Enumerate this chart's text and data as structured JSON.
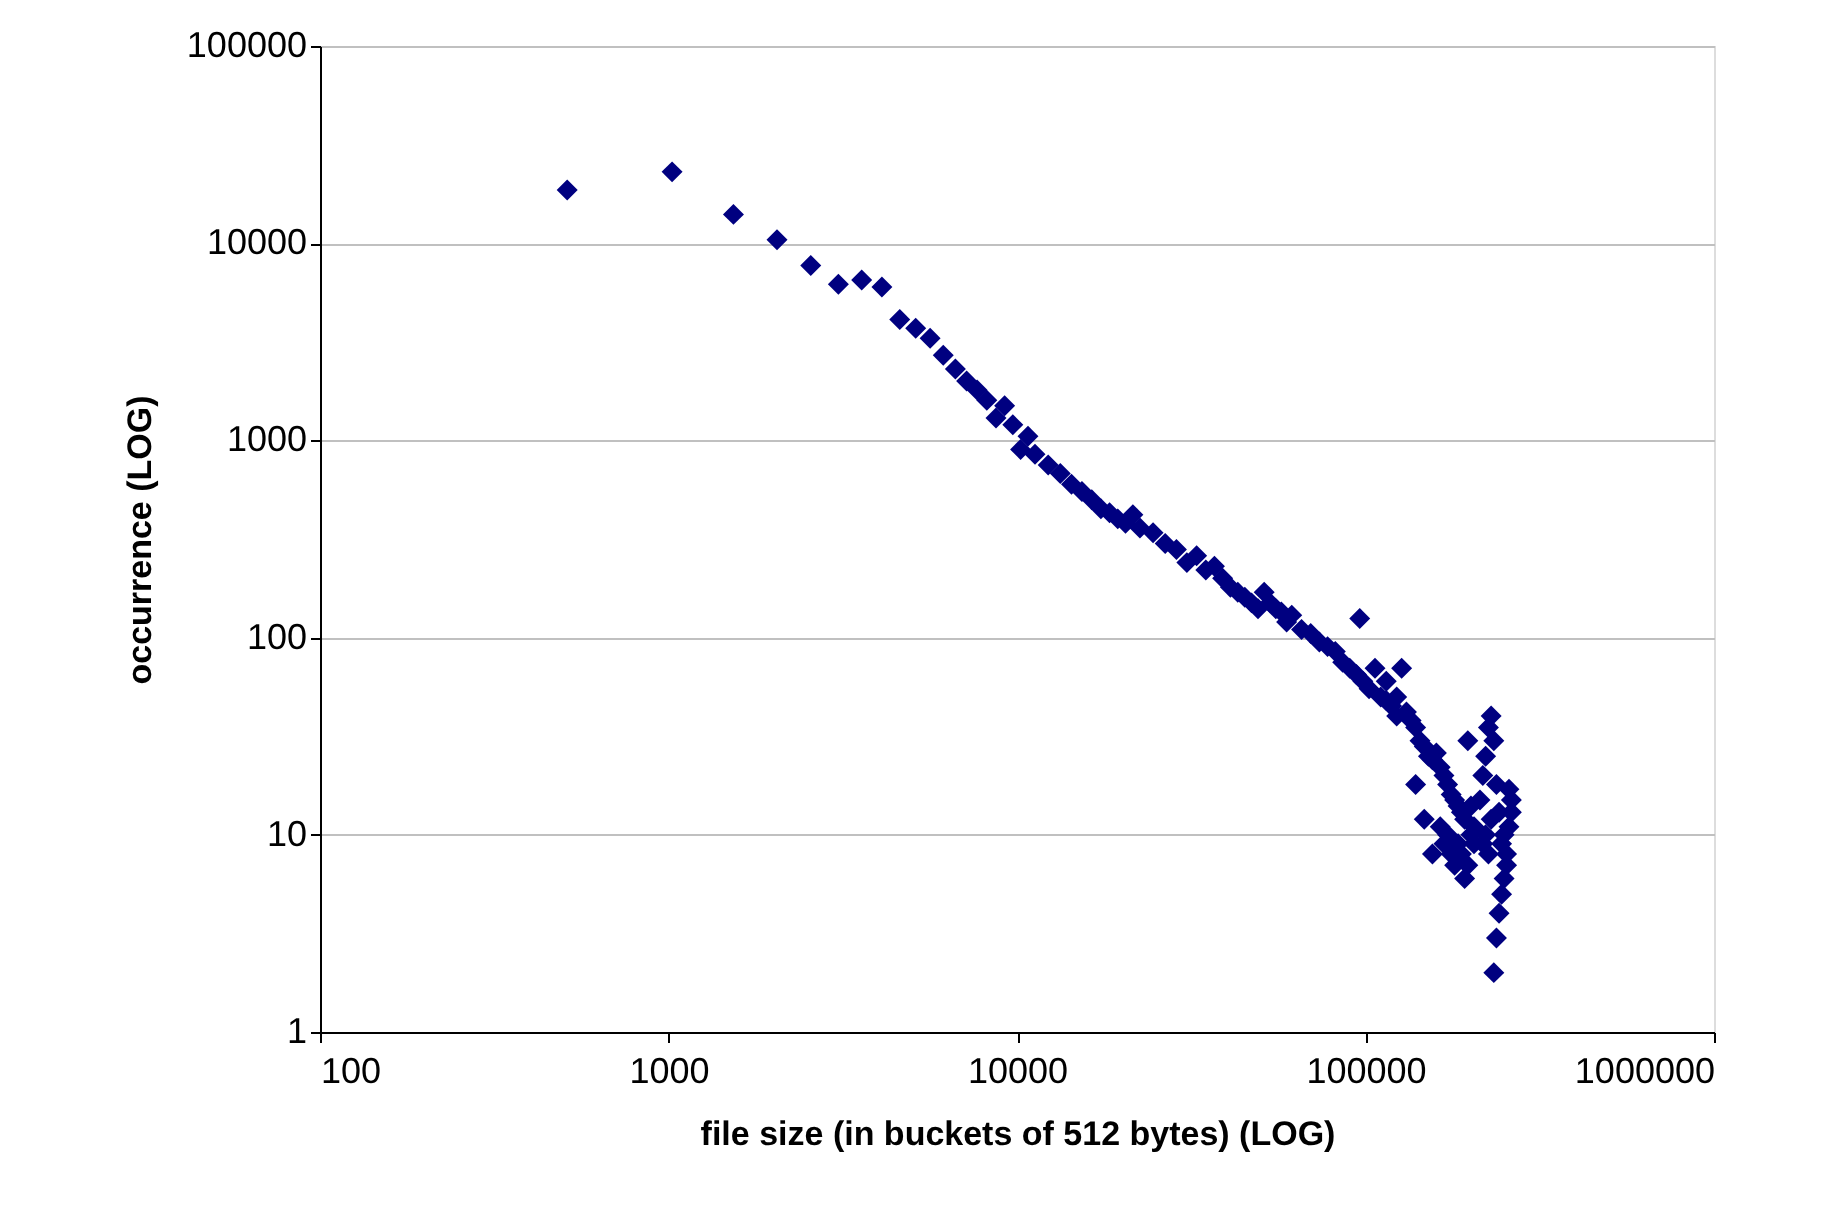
{
  "chart_data": {
    "type": "scatter",
    "xlabel": "file size (in buckets of 512 bytes) (LOG)",
    "ylabel": "occurrence (LOG)",
    "log": "xy",
    "grid": "y",
    "marker": "diamond",
    "xlim": [
      100,
      1000000
    ],
    "xticks": [
      100,
      1000,
      10000,
      100000,
      1000000
    ],
    "ylim": [
      1,
      100000
    ],
    "yticks": [
      1,
      10,
      100,
      1000,
      10000,
      100000
    ],
    "series": [
      {
        "color": "#000080",
        "x": [
          512,
          1024,
          1536,
          2048,
          2560,
          3072,
          3584,
          4096,
          4608,
          5120,
          5632,
          6144,
          6656,
          7168,
          7680,
          8192,
          8704,
          9216,
          9728,
          10240,
          10752,
          11264,
          12288,
          13312,
          14336,
          15360,
          16384,
          17408,
          18432,
          19456,
          20480,
          21504,
          22528,
          24576,
          26624,
          28672,
          30720,
          32768,
          34816,
          36864,
          38912,
          40960,
          43008,
          45056,
          47104,
          49152,
          51200,
          53248,
          55296,
          57344,
          59392,
          61440,
          65536,
          69632,
          73728,
          77824,
          81920,
          86016,
          90112,
          94208,
          96256,
          98304,
          102400,
          106496,
          110592,
          114688,
          118784,
          122880,
          126976,
          131072,
          135168,
          139264,
          143360,
          147456,
          151552,
          155648,
          159744,
          163840,
          167936,
          172032,
          176128,
          180224,
          184320,
          188416,
          192512,
          196608,
          200704,
          204800,
          217088,
          221184,
          225280,
          229376,
          233472,
          237568,
          241664,
          245760,
          249856,
          253952,
          258048,
          262144,
          262144,
          258048,
          253952,
          249856,
          245760,
          241664,
          237568,
          233472,
          229376,
          225280,
          221184,
          217088,
          212992,
          204800,
          200704,
          196608,
          192512,
          188416,
          184320,
          180224,
          176128,
          172032,
          167936,
          163840,
          155648,
          147456,
          139264,
          122880,
          114688
        ],
        "values": [
          18600,
          23000,
          14000,
          10400,
          7700,
          6200,
          6500,
          6000,
          4100,
          3700,
          3300,
          2700,
          2300,
          2000,
          1800,
          1600,
          1300,
          1500,
          1200,
          900,
          1050,
          850,
          750,
          680,
          600,
          550,
          500,
          450,
          430,
          400,
          380,
          420,
          360,
          340,
          300,
          280,
          240,
          260,
          220,
          230,
          200,
          180,
          170,
          160,
          150,
          140,
          170,
          150,
          140,
          135,
          120,
          130,
          110,
          105,
          95,
          90,
          85,
          75,
          70,
          65,
          125,
          60,
          55,
          70,
          50,
          48,
          45,
          40,
          70,
          42,
          38,
          35,
          30,
          28,
          25,
          24,
          26,
          22,
          20,
          18,
          16,
          15,
          14,
          13,
          12,
          30,
          14,
          11,
          9,
          10,
          8,
          12,
          30,
          18,
          13,
          9,
          10,
          8,
          11,
          13,
          15,
          17,
          7,
          6,
          5,
          4,
          3,
          2,
          40,
          35,
          25,
          20,
          15,
          9,
          10,
          7,
          6,
          8,
          9,
          7,
          8,
          10,
          9,
          11,
          8,
          12,
          18,
          50,
          60
        ]
      }
    ]
  }
}
